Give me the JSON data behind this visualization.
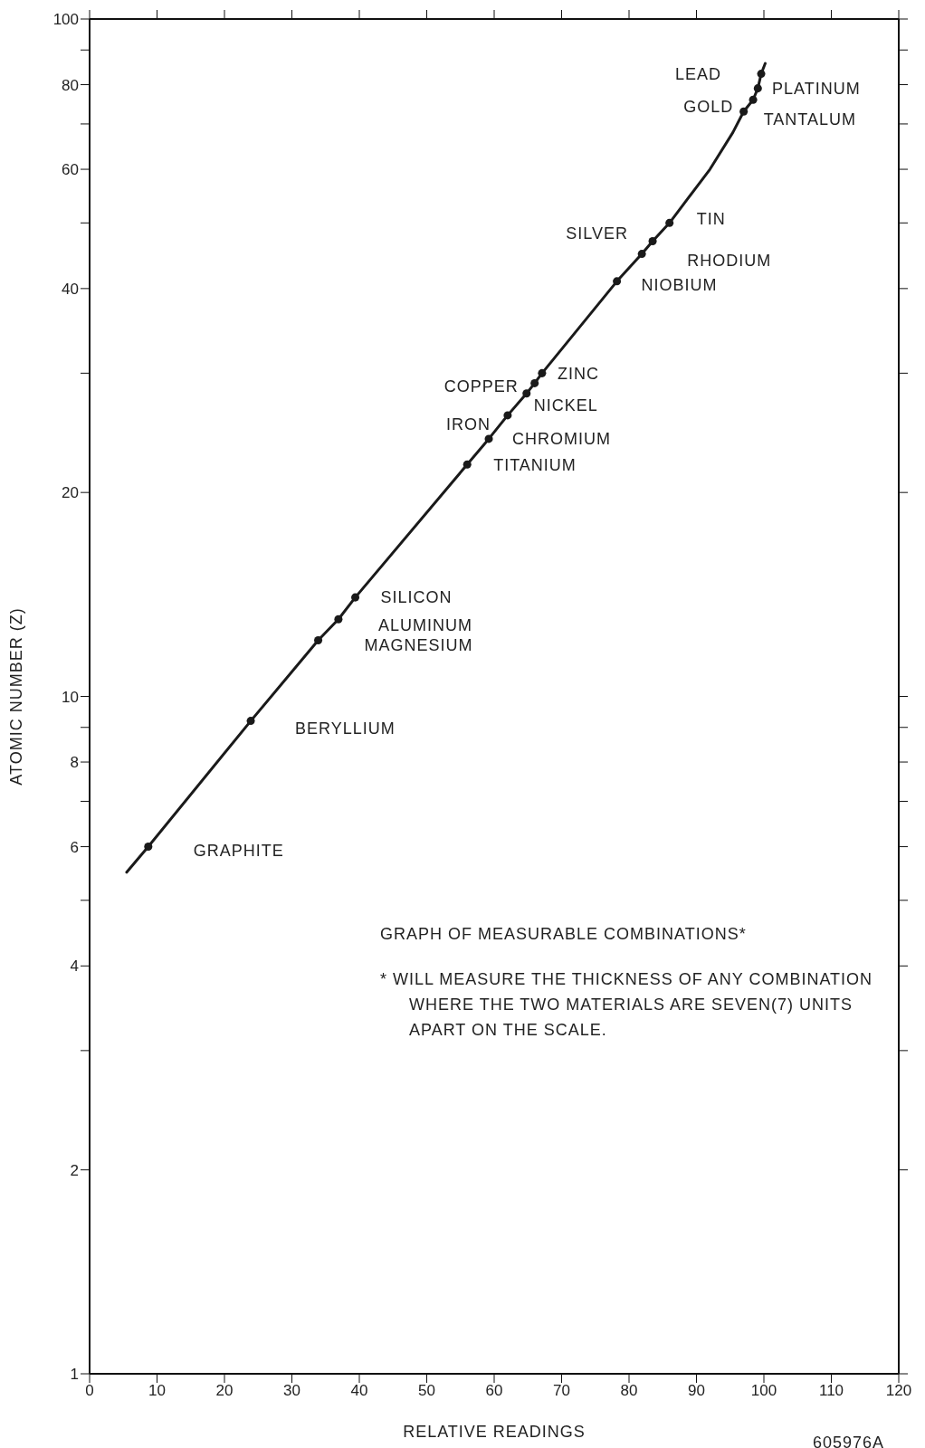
{
  "chart_data": {
    "type": "line",
    "xlabel": "RELATIVE READINGS",
    "ylabel": "ATOMIC NUMBER (Z)",
    "log": "y",
    "xlim": [
      0,
      120
    ],
    "xticks": [
      0,
      10,
      20,
      30,
      40,
      50,
      60,
      70,
      80,
      90,
      100,
      110,
      120
    ],
    "ylim": [
      1,
      100
    ],
    "yticks": [
      1,
      2,
      {
        "value": 3,
        "label": null
      },
      4,
      {
        "value": 5,
        "label": null
      },
      6,
      {
        "value": 7,
        "label": null
      },
      8,
      {
        "value": 9,
        "label": null
      },
      10,
      20,
      {
        "value": 30,
        "label": null
      },
      40,
      {
        "value": 50,
        "label": null
      },
      60,
      {
        "value": 70,
        "label": null
      },
      80,
      {
        "value": 90,
        "label": null
      },
      100
    ],
    "series": [
      {
        "color": "#1a1a1a",
        "marker": "none",
        "line_style": "solid",
        "x": [
          5.5,
          8.7,
          23.9,
          33.9,
          36.9,
          39.4,
          56.0,
          59.2,
          62.0,
          64.8,
          66.0,
          67.1,
          78.2,
          81.9,
          83.5,
          86.0,
          92.0,
          95.4,
          97.0,
          98.4,
          99.1,
          99.6,
          100.2
        ],
        "values": [
          5.5,
          6,
          9.2,
          12.1,
          13,
          14,
          22,
          24,
          26,
          28,
          29,
          30,
          41,
          45,
          47,
          50,
          60,
          68,
          73,
          76,
          79,
          83,
          86
        ]
      },
      {
        "type": "scatter",
        "color": "#1a1a1a",
        "marker": "circle",
        "x": [
          8.7,
          23.9,
          33.9,
          36.9,
          39.4,
          56.0,
          59.2,
          62.0,
          64.8,
          66.0,
          67.1,
          78.2,
          81.9,
          83.5,
          86.0,
          97.0,
          98.4,
          99.1,
          99.6
        ],
        "values": [
          6,
          9.2,
          12.1,
          13,
          14,
          22,
          24,
          26,
          28,
          29,
          30,
          41,
          45,
          47,
          50,
          73,
          76,
          79,
          83
        ]
      }
    ],
    "annotations": [
      {
        "text": "GRAPHITE",
        "x": 8.7,
        "y": 6
      },
      {
        "text": "BERYLLIUM",
        "x": 23.9,
        "y": 9.2
      },
      {
        "text": "MAGNESIUM",
        "x": 33.9,
        "y": 12.1
      },
      {
        "text": "ALUMINUM",
        "x": 36.9,
        "y": 13
      },
      {
        "text": "SILICON",
        "x": 39.4,
        "y": 14
      },
      {
        "text": "TITANIUM",
        "x": 56.0,
        "y": 22
      },
      {
        "text": "CHROMIUM",
        "x": 59.2,
        "y": 24
      },
      {
        "text": "IRON",
        "x": 62.0,
        "y": 26
      },
      {
        "text": "NICKEL",
        "x": 64.8,
        "y": 28
      },
      {
        "text": "COPPER",
        "x": 66.0,
        "y": 29
      },
      {
        "text": "ZINC",
        "x": 67.1,
        "y": 30
      },
      {
        "text": "NIOBIUM",
        "x": 78.2,
        "y": 41
      },
      {
        "text": "RHODIUM",
        "x": 81.9,
        "y": 45
      },
      {
        "text": "SILVER",
        "x": 83.5,
        "y": 47
      },
      {
        "text": "TIN",
        "x": 86.0,
        "y": 50
      },
      {
        "text": "TANTALUM",
        "x": 97.0,
        "y": 73
      },
      {
        "text": "PLATINUM",
        "x": 98.4,
        "y": 76
      },
      {
        "text": "GOLD",
        "x": 99.1,
        "y": 79
      },
      {
        "text": "LEAD",
        "x": 99.6,
        "y": 83
      },
      "GRAPH OF MEASURABLE COMBINATIONS*",
      "* WILL MEASURE THE THICKNESS OF ANY COMBINATION WHERE THE TWO MATERIALS ARE SEVEN(7) UNITS APART ON THE SCALE.",
      "605976A"
    ]
  }
}
